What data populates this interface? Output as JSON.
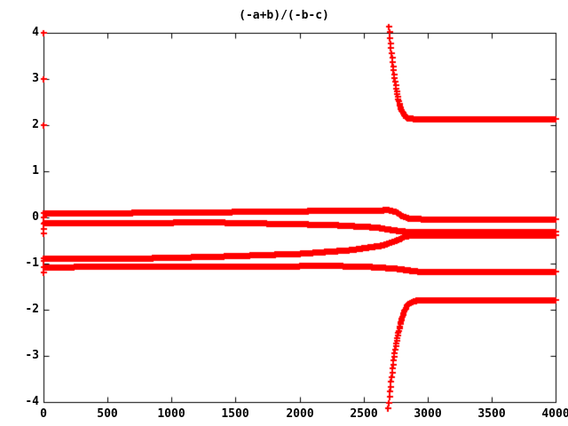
{
  "chart_data": {
    "type": "scatter",
    "marker": "plus",
    "title": "(-a+b)/(-b-c)",
    "xlabel": "",
    "ylabel": "",
    "xlim": [
      0,
      4000
    ],
    "ylim": [
      -4,
      4
    ],
    "grid": false,
    "legend": "none",
    "border": "box-with-ticks-all-sides",
    "sample_step": 4,
    "x_ticks": {
      "values": [
        0,
        500,
        1000,
        1500,
        2000,
        2500,
        3000,
        3500,
        4000
      ],
      "labels": [
        "0",
        "500",
        "1000",
        "1500",
        "2000",
        "2500",
        "3000",
        "3500",
        "4000"
      ]
    },
    "y_ticks": {
      "values": [
        -4,
        -3,
        -2,
        -1,
        0,
        1,
        2,
        3,
        4
      ],
      "labels": [
        "-4",
        "-3",
        "-2",
        "-1",
        "0",
        "1",
        "2",
        "3",
        "4"
      ]
    },
    "colors": {
      "marker": "#ff0000",
      "axis": "#000000",
      "background": "#ffffff",
      "text": "#000000"
    },
    "series": [
      {
        "name": "band-upper-near-zero",
        "points": [
          [
            0,
            0.09
          ],
          [
            1320,
            0.12
          ],
          [
            2400,
            0.155
          ],
          [
            2700,
            0.165
          ],
          [
            2760,
            0.12
          ],
          [
            2800,
            0.04
          ],
          [
            2860,
            -0.02
          ],
          [
            2960,
            -0.03
          ],
          [
            4000,
            -0.03
          ]
        ]
      },
      {
        "name": "band-lower-near-zero",
        "points": [
          [
            0,
            -0.125
          ],
          [
            1320,
            -0.1
          ],
          [
            2250,
            -0.155
          ],
          [
            2600,
            -0.21
          ],
          [
            2745,
            -0.275
          ],
          [
            2830,
            -0.3
          ],
          [
            4000,
            -0.3
          ]
        ]
      },
      {
        "name": "band-rising-to-merge",
        "points": [
          [
            0,
            -0.89
          ],
          [
            700,
            -0.885
          ],
          [
            1320,
            -0.845
          ],
          [
            2000,
            -0.78
          ],
          [
            2400,
            -0.7
          ],
          [
            2650,
            -0.6
          ],
          [
            2780,
            -0.47
          ],
          [
            2830,
            -0.395
          ],
          [
            2950,
            -0.39
          ],
          [
            4000,
            -0.39
          ]
        ]
      },
      {
        "name": "band-near-minus-one",
        "points": [
          [
            0,
            -1.07
          ],
          [
            1320,
            -1.055
          ],
          [
            2300,
            -1.045
          ],
          [
            2600,
            -1.07
          ],
          [
            2780,
            -1.11
          ],
          [
            2900,
            -1.16
          ],
          [
            3020,
            -1.18
          ],
          [
            4000,
            -1.18
          ]
        ]
      },
      {
        "name": "upper-asymptote-branch",
        "points": [
          [
            2697,
            4.14
          ],
          [
            2708,
            3.8
          ],
          [
            2720,
            3.48
          ],
          [
            2734,
            3.16
          ],
          [
            2750,
            2.84
          ],
          [
            2768,
            2.56
          ],
          [
            2790,
            2.34
          ],
          [
            2815,
            2.22
          ],
          [
            2845,
            2.16
          ],
          [
            2900,
            2.14
          ],
          [
            4000,
            2.13
          ]
        ]
      },
      {
        "name": "lower-asymptote-branch",
        "points": [
          [
            2693,
            -4.14
          ],
          [
            2704,
            -3.8
          ],
          [
            2716,
            -3.48
          ],
          [
            2730,
            -3.16
          ],
          [
            2746,
            -2.84
          ],
          [
            2764,
            -2.56
          ],
          [
            2786,
            -2.3
          ],
          [
            2812,
            -2.05
          ],
          [
            2842,
            -1.88
          ],
          [
            2900,
            -1.8
          ],
          [
            3000,
            -1.78
          ],
          [
            4000,
            -1.78
          ]
        ]
      }
    ],
    "isolated_points": [
      [
        0,
        4.0
      ],
      [
        0,
        3.0
      ],
      [
        0,
        2.0
      ],
      [
        0,
        0.0
      ],
      [
        0,
        -0.25
      ],
      [
        0,
        -0.35
      ],
      [
        0,
        -0.95
      ],
      [
        0,
        -1.2
      ]
    ]
  }
}
